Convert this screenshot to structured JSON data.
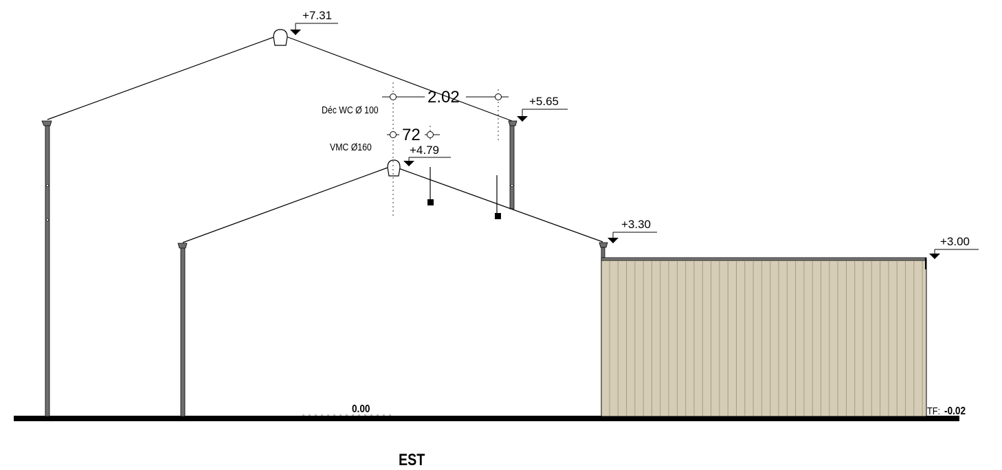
{
  "drawing": {
    "view_title": "EST",
    "levels": {
      "ridge_high": "+7.31",
      "eave_high": "+5.65",
      "ridge_mid": "+4.79",
      "eave_mid": "+3.30",
      "annex_top": "+3.00"
    },
    "ground_level": "0.00",
    "finished_floor": {
      "prefix": "TF:",
      "value": "-0.02"
    },
    "dimensions": {
      "wc_spacing": "2.02",
      "vmc_spacing": "72"
    },
    "labels": {
      "wc_drain": "Déc WC Ø 100",
      "vmc": "VMC Ø160"
    },
    "colors": {
      "cladding": "#d6cdb6",
      "line": "#000000",
      "post": "#6e6e6e"
    }
  }
}
